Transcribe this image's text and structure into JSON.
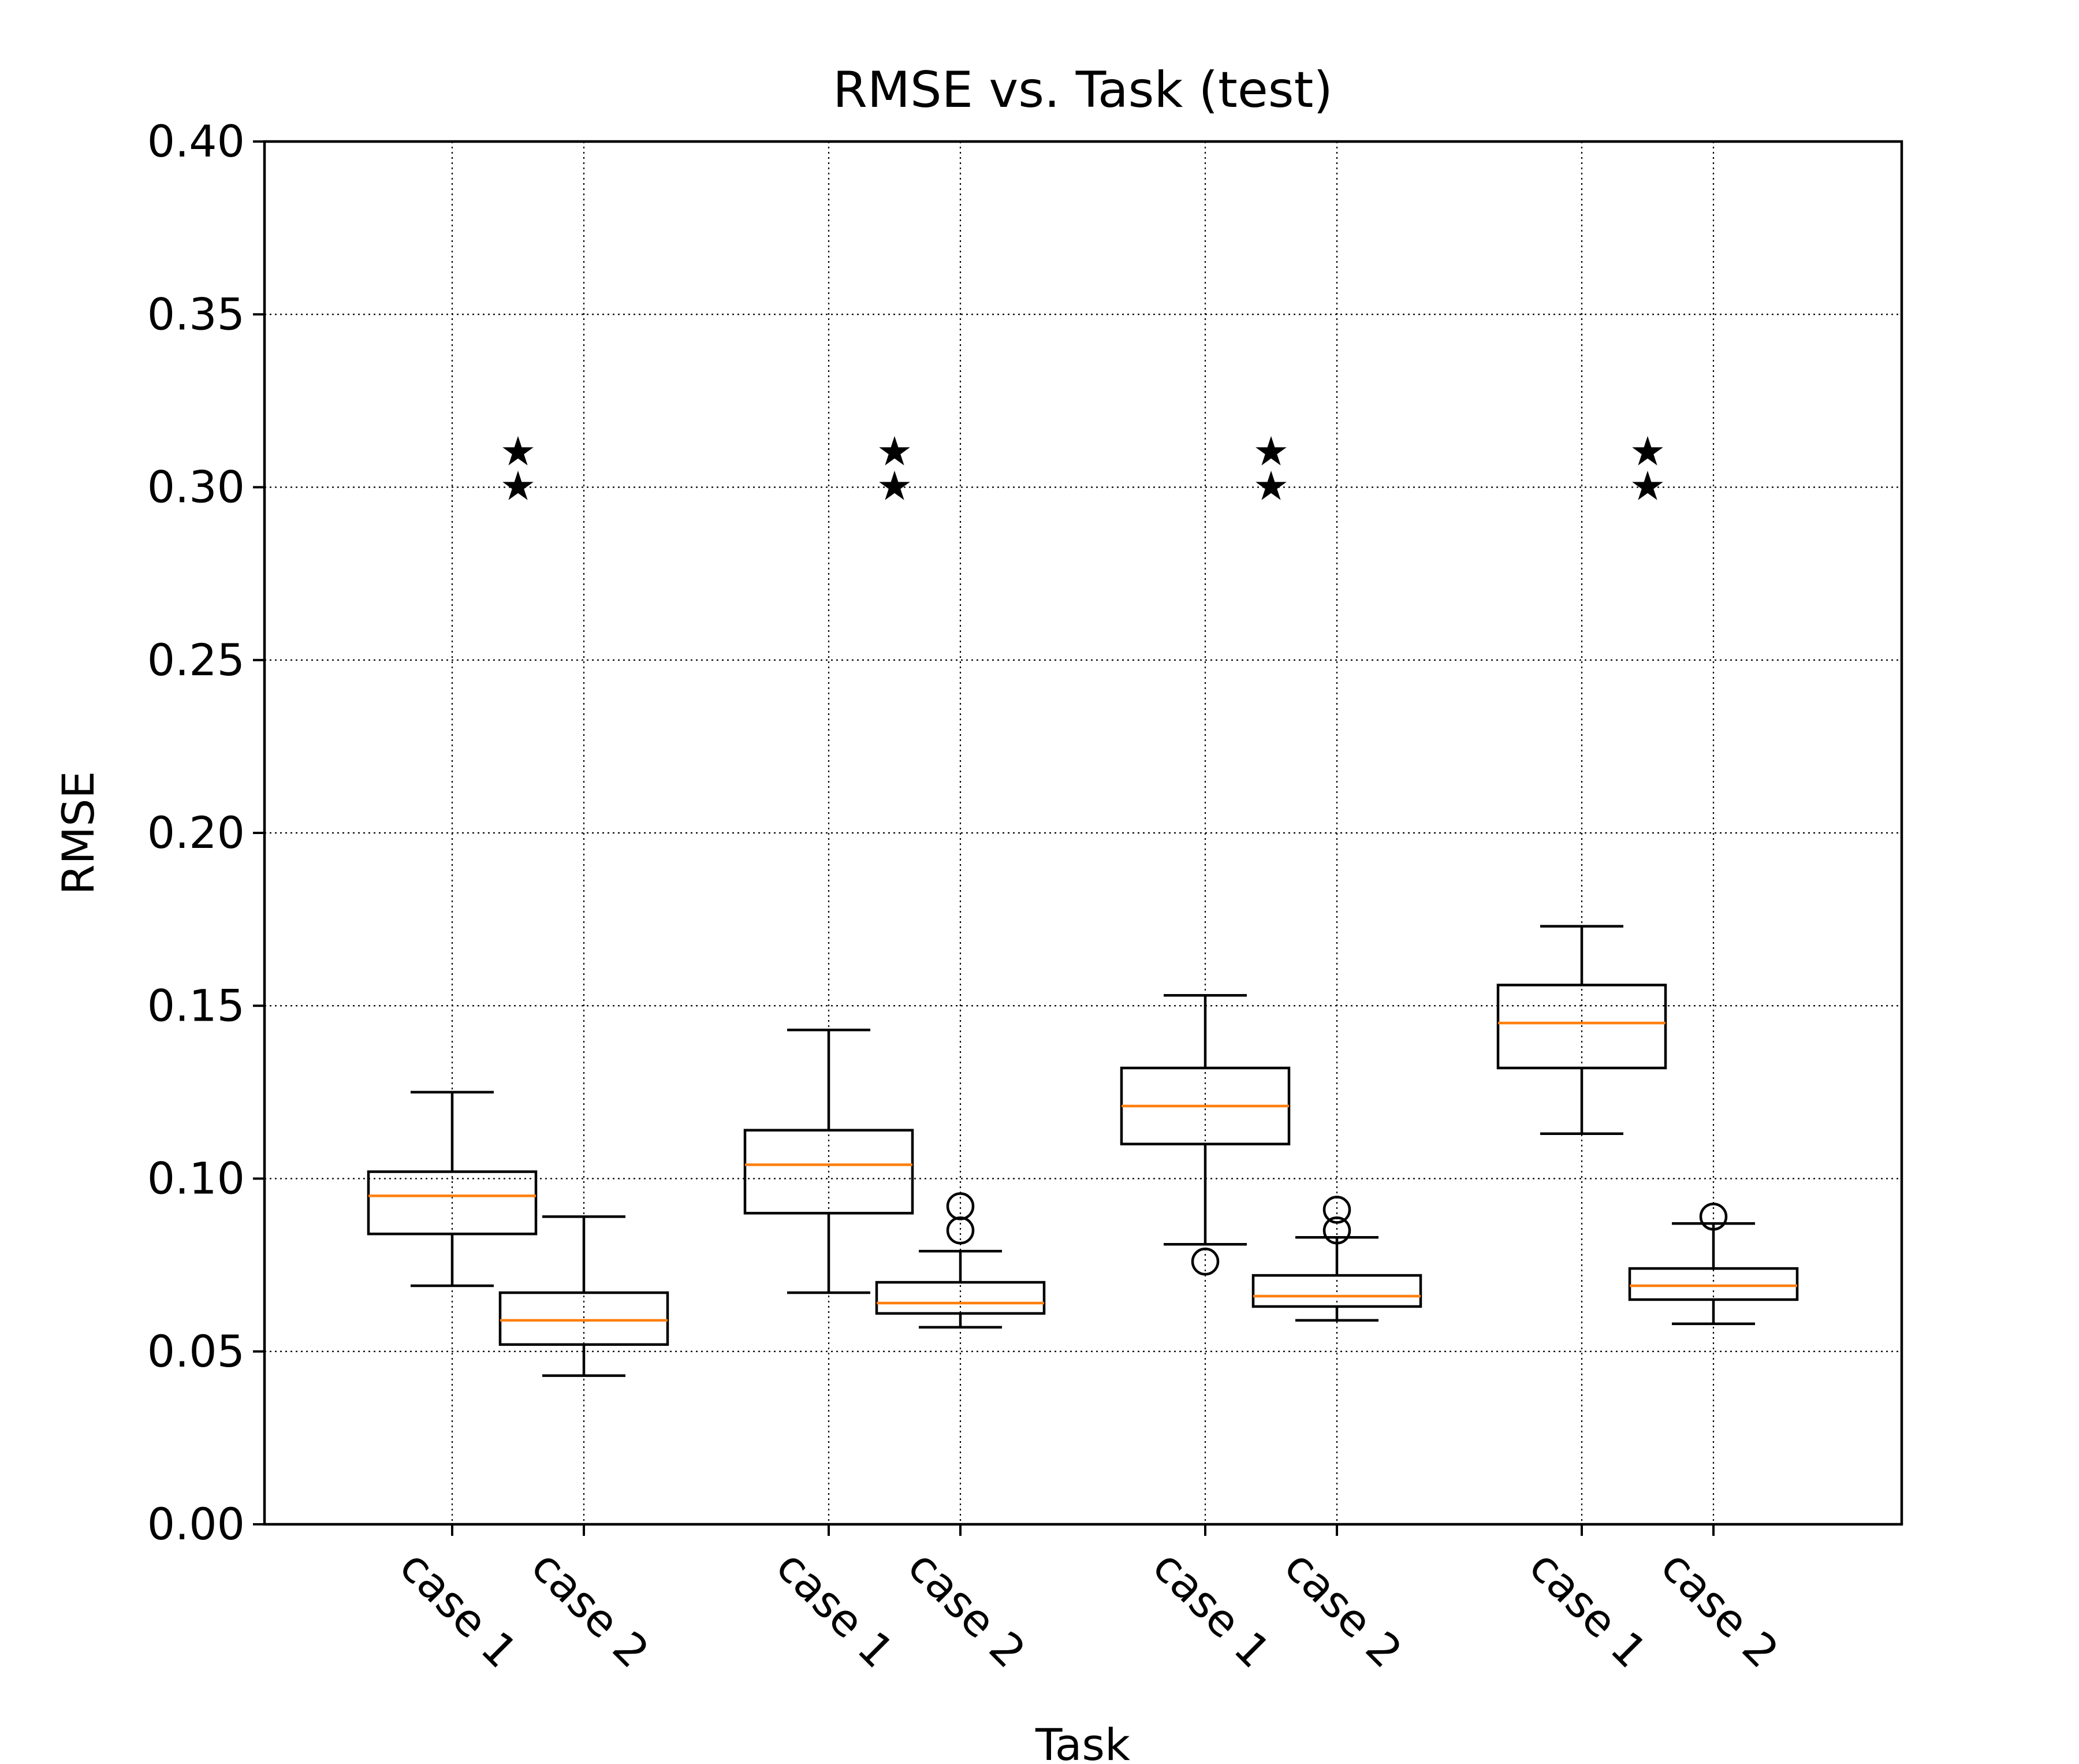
{
  "chart_data": {
    "type": "box",
    "title": "RMSE vs. Task (test)",
    "xlabel": "Task",
    "ylabel": "RMSE",
    "ylim": [
      0,
      0.4
    ],
    "yticks": [
      "0.00",
      "0.05",
      "0.10",
      "0.15",
      "0.20",
      "0.25",
      "0.30",
      "0.35",
      "0.40"
    ],
    "grid": true,
    "groups": [
      {
        "boxes": [
          {
            "label": "case 1",
            "whislo": 0.069,
            "q1": 0.084,
            "med": 0.095,
            "q3": 0.102,
            "whishi": 0.125,
            "fliers": []
          },
          {
            "label": "case 2",
            "whislo": 0.043,
            "q1": 0.052,
            "med": 0.059,
            "q3": 0.067,
            "whishi": 0.089,
            "fliers": []
          }
        ],
        "stars": [
          0.3,
          0.31
        ]
      },
      {
        "boxes": [
          {
            "label": "case 1",
            "whislo": 0.067,
            "q1": 0.09,
            "med": 0.104,
            "q3": 0.114,
            "whishi": 0.143,
            "fliers": []
          },
          {
            "label": "case 2",
            "whislo": 0.057,
            "q1": 0.061,
            "med": 0.064,
            "q3": 0.07,
            "whishi": 0.079,
            "fliers": [
              0.085,
              0.092
            ]
          }
        ],
        "stars": [
          0.3,
          0.31
        ]
      },
      {
        "boxes": [
          {
            "label": "case 1",
            "whislo": 0.081,
            "q1": 0.11,
            "med": 0.121,
            "q3": 0.132,
            "whishi": 0.153,
            "fliers": [
              0.076
            ]
          },
          {
            "label": "case 2",
            "whislo": 0.059,
            "q1": 0.063,
            "med": 0.066,
            "q3": 0.072,
            "whishi": 0.083,
            "fliers": [
              0.085,
              0.091
            ]
          }
        ],
        "stars": [
          0.3,
          0.31
        ]
      },
      {
        "boxes": [
          {
            "label": "case 1",
            "whislo": 0.113,
            "q1": 0.132,
            "med": 0.145,
            "q3": 0.156,
            "whishi": 0.173,
            "fliers": []
          },
          {
            "label": "case 2",
            "whislo": 0.058,
            "q1": 0.065,
            "med": 0.069,
            "q3": 0.074,
            "whishi": 0.087,
            "fliers": [
              0.089
            ]
          }
        ],
        "stars": [
          0.3,
          0.31
        ]
      }
    ],
    "colors": {
      "median": "#ff7f0e",
      "box": "#000000",
      "grid": "#000000"
    }
  }
}
